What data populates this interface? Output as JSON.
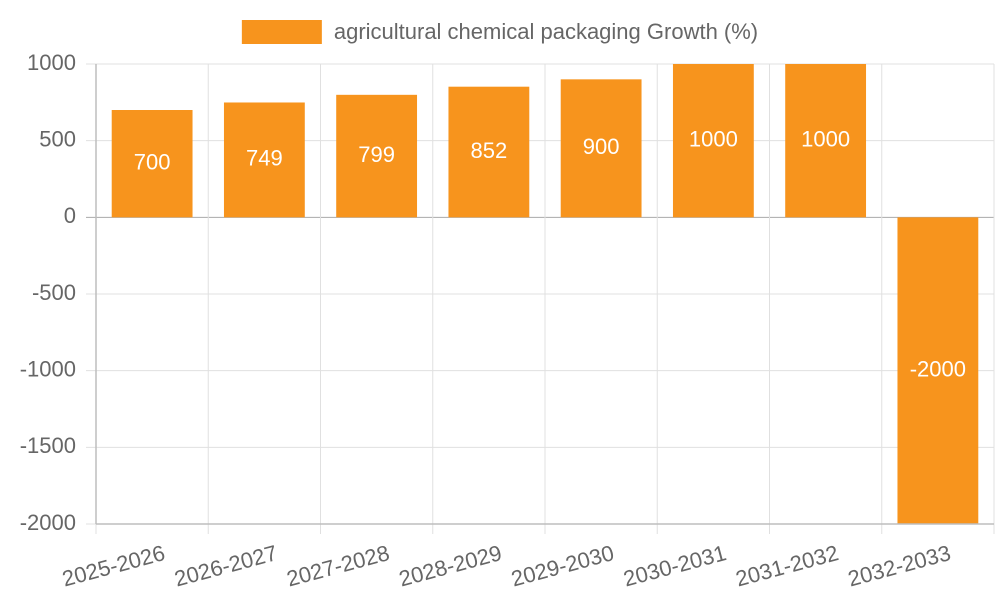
{
  "chart_data": {
    "type": "bar",
    "title": "",
    "xlabel": "",
    "ylabel": "",
    "categories": [
      "2025-2026",
      "2026-2027",
      "2027-2028",
      "2028-2029",
      "2029-2030",
      "2030-2031",
      "2031-2032",
      "2032-2033"
    ],
    "series": [
      {
        "name": "agricultural chemical packaging Growth (%)",
        "values": [
          700,
          749,
          799,
          852,
          900,
          1000,
          1000,
          -2000
        ],
        "color": "#F7941D"
      }
    ],
    "data_labels": [
      "700",
      "749",
      "799",
      "852",
      "900",
      "1000",
      "1000",
      "-2000"
    ],
    "ylim": [
      -2000,
      1000
    ],
    "yticks": [
      1000,
      500,
      0,
      -500,
      -1000,
      -1500,
      -2000
    ],
    "grid": true,
    "legend_position": "top-center"
  },
  "colors": {
    "bar": "#F7941D",
    "grid": "#e0e0e0",
    "axis": "#bdbdbd",
    "text": "#666666",
    "label": "#ffffff"
  }
}
